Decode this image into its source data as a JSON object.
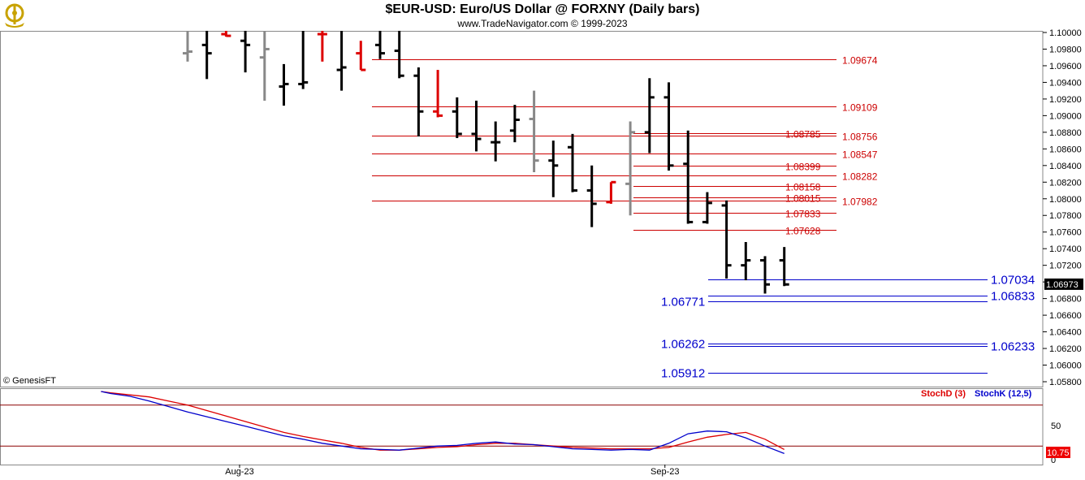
{
  "header": {
    "title": "$EUR-USD:  Euro/US Dollar @ FORXNY  (Daily bars)",
    "subtitle": "www.TradeNavigator.com © 1999-2023",
    "copyright": "© GenesisFT"
  },
  "colors": {
    "bull": "#000000",
    "flat": "#888888",
    "red_bar": "#dd0000",
    "red_level": "#cc0000",
    "blue_level": "#0000cc",
    "stochD": "#dd0000",
    "stochK": "#0000cc"
  },
  "chart_data": [
    {
      "type": "ohlc",
      "price_axis": {
        "min": 1.058,
        "max": 1.1,
        "step": 0.002,
        "ticks": [
          "1.10000",
          "1.09800",
          "1.09600",
          "1.09400",
          "1.09200",
          "1.09000",
          "1.08800",
          "1.08600",
          "1.08400",
          "1.08200",
          "1.08000",
          "1.07800",
          "1.07600",
          "1.07400",
          "1.07200",
          "1.07000",
          "1.06800",
          "1.06600",
          "1.06400",
          "1.06200",
          "1.06000",
          "1.05800"
        ]
      },
      "last_price": "1.06973",
      "bars": [
        {
          "h": 1.1002,
          "l": 1.0965,
          "o": 1.0975,
          "c": 1.0977,
          "color": "flat"
        },
        {
          "h": 1.1002,
          "l": 1.0944,
          "o": 1.0985,
          "c": 1.0975,
          "color": "bull"
        },
        {
          "h": 1.1002,
          "l": 1.0995,
          "o": 1.0998,
          "c": 1.0996,
          "color": "red"
        },
        {
          "h": 1.1002,
          "l": 1.0952,
          "o": 1.099,
          "c": 1.0985,
          "color": "bull"
        },
        {
          "h": 1.1002,
          "l": 1.0918,
          "o": 1.097,
          "c": 1.098,
          "color": "flat"
        },
        {
          "h": 1.0962,
          "l": 1.0912,
          "o": 1.0935,
          "c": 1.0938,
          "color": "bull"
        },
        {
          "h": 1.1002,
          "l": 1.0932,
          "o": 1.0938,
          "c": 1.094,
          "color": "bull"
        },
        {
          "h": 1.1002,
          "l": 1.0965,
          "o": 1.0998,
          "c": 1.0998,
          "color": "red"
        },
        {
          "h": 1.1002,
          "l": 1.093,
          "o": 1.0955,
          "c": 1.0958,
          "color": "bull"
        },
        {
          "h": 1.099,
          "l": 1.0955,
          "o": 1.0975,
          "c": 1.0955,
          "color": "red"
        },
        {
          "h": 1.1002,
          "l": 1.0968,
          "o": 1.0985,
          "c": 1.0975,
          "color": "bull"
        },
        {
          "h": 1.1002,
          "l": 1.0945,
          "o": 1.0978,
          "c": 1.0948,
          "color": "bull"
        },
        {
          "h": 1.0958,
          "l": 1.0875,
          "o": 1.0948,
          "c": 1.0905,
          "color": "bull"
        },
        {
          "h": 1.0955,
          "l": 1.0898,
          "o": 1.0905,
          "c": 1.09,
          "color": "red"
        },
        {
          "h": 1.0922,
          "l": 1.0873,
          "o": 1.0905,
          "c": 1.0878,
          "color": "bull"
        },
        {
          "h": 1.0918,
          "l": 1.0857,
          "o": 1.0878,
          "c": 1.0872,
          "color": "bull"
        },
        {
          "h": 1.0893,
          "l": 1.0845,
          "o": 1.0868,
          "c": 1.0868,
          "color": "bull"
        },
        {
          "h": 1.0913,
          "l": 1.0868,
          "o": 1.0882,
          "c": 1.0895,
          "color": "bull"
        },
        {
          "h": 1.093,
          "l": 1.0832,
          "o": 1.0896,
          "c": 1.0846,
          "color": "flat"
        },
        {
          "h": 1.087,
          "l": 1.0802,
          "o": 1.0846,
          "c": 1.084,
          "color": "bull"
        },
        {
          "h": 1.0878,
          "l": 1.0808,
          "o": 1.0862,
          "c": 1.081,
          "color": "bull"
        },
        {
          "h": 1.084,
          "l": 1.0766,
          "o": 1.081,
          "c": 1.0794,
          "color": "bull"
        },
        {
          "h": 1.082,
          "l": 1.0794,
          "o": 1.0796,
          "c": 1.082,
          "color": "red"
        },
        {
          "h": 1.0893,
          "l": 1.078,
          "o": 1.0818,
          "c": 1.088,
          "color": "flat"
        },
        {
          "h": 1.0945,
          "l": 1.0855,
          "o": 1.088,
          "c": 1.0922,
          "color": "bull"
        },
        {
          "h": 1.094,
          "l": 1.0834,
          "o": 1.0922,
          "c": 1.084,
          "color": "bull"
        },
        {
          "h": 1.0882,
          "l": 1.077,
          "o": 1.0842,
          "c": 1.0772,
          "color": "bull"
        },
        {
          "h": 1.0808,
          "l": 1.077,
          "o": 1.0772,
          "c": 1.0795,
          "color": "bull"
        },
        {
          "h": 1.0798,
          "l": 1.0704,
          "o": 1.0792,
          "c": 1.072,
          "color": "bull"
        },
        {
          "h": 1.0748,
          "l": 1.0702,
          "o": 1.072,
          "c": 1.0726,
          "color": "bull"
        },
        {
          "h": 1.0731,
          "l": 1.0686,
          "o": 1.0726,
          "c": 1.0697,
          "color": "bull"
        },
        {
          "h": 1.0742,
          "l": 1.0695,
          "o": 1.0726,
          "c": 1.0697,
          "color": "bull"
        }
      ],
      "levels": [
        {
          "value": 1.09674,
          "label": "1.09674",
          "color": "red",
          "side": "right"
        },
        {
          "value": 1.09109,
          "label": "1.09109",
          "color": "red",
          "side": "right"
        },
        {
          "value": 1.08785,
          "label": "1.08785",
          "color": "red",
          "side": "mid"
        },
        {
          "value": 1.08756,
          "label": "1.08756",
          "color": "red",
          "side": "right"
        },
        {
          "value": 1.08547,
          "label": "1.08547",
          "color": "red",
          "side": "right"
        },
        {
          "value": 1.08399,
          "label": "1.08399",
          "color": "red",
          "side": "mid"
        },
        {
          "value": 1.08282,
          "label": "1.08282",
          "color": "red",
          "side": "right"
        },
        {
          "value": 1.08158,
          "label": "1.08158",
          "color": "red",
          "side": "mid"
        },
        {
          "value": 1.08015,
          "label": "1.08015",
          "color": "red",
          "side": "mid"
        },
        {
          "value": 1.07982,
          "label": "1.07982",
          "color": "red",
          "side": "right"
        },
        {
          "value": 1.07833,
          "label": "1.07833",
          "color": "red",
          "side": "mid"
        },
        {
          "value": 1.07628,
          "label": "1.07628",
          "color": "red",
          "side": "mid"
        },
        {
          "value": 1.07034,
          "label": "1.07034",
          "color": "blue",
          "side": "right"
        },
        {
          "value": 1.06833,
          "label": "1.06833",
          "color": "blue",
          "side": "right"
        },
        {
          "value": 1.06771,
          "label": "1.06771",
          "color": "blue",
          "side": "left"
        },
        {
          "value": 1.06262,
          "label": "1.06262",
          "color": "blue",
          "side": "left"
        },
        {
          "value": 1.06233,
          "label": "1.06233",
          "color": "blue",
          "side": "right"
        },
        {
          "value": 1.05912,
          "label": "1.05912",
          "color": "blue",
          "side": "left"
        }
      ],
      "x_ticks": [
        {
          "label": "Aug-23",
          "bar": 2.7
        },
        {
          "label": "Sep-23",
          "bar": 24.8
        }
      ]
    },
    {
      "type": "line",
      "indicator": "stochastic",
      "y_axis": {
        "min": 0,
        "max": 100,
        "ticks": [
          "50",
          "0"
        ],
        "upper": 80,
        "lower": 20
      },
      "last_value": "10.75",
      "series": [
        {
          "name": "StochD (3)",
          "color": "stochD",
          "x": [
            -4.5,
            -4,
            -3,
            -2,
            -1,
            0,
            1,
            2,
            3,
            4,
            5,
            6,
            7,
            8,
            9,
            10,
            11,
            12,
            13,
            14,
            15,
            16,
            17,
            18,
            19,
            20,
            21,
            22,
            23,
            24,
            25,
            26,
            27,
            28,
            29,
            30,
            31
          ],
          "y": [
            100,
            98,
            95,
            92,
            86,
            80,
            72,
            64,
            56,
            48,
            40,
            34,
            29,
            24,
            18,
            14,
            14,
            16,
            18,
            19,
            22,
            24,
            24,
            22,
            20,
            18,
            17,
            16,
            16,
            16,
            18,
            26,
            33,
            37,
            40,
            30,
            15
          ]
        },
        {
          "name": "StochK (12,5)",
          "color": "stochK",
          "x": [
            -4.5,
            -4,
            -3,
            -2,
            -1,
            0,
            1,
            2,
            3,
            4,
            5,
            6,
            7,
            8,
            9,
            10,
            11,
            12,
            13,
            14,
            15,
            16,
            17,
            18,
            19,
            20,
            21,
            22,
            23,
            24,
            25,
            26,
            27,
            28,
            29,
            30,
            31
          ],
          "y": [
            100,
            97,
            93,
            86,
            78,
            70,
            63,
            56,
            49,
            42,
            35,
            30,
            24,
            20,
            16,
            15,
            14,
            17,
            20,
            21,
            24,
            26,
            23,
            22,
            19,
            16,
            15,
            14,
            15,
            14,
            24,
            38,
            42,
            41,
            32,
            20,
            9
          ]
        }
      ]
    }
  ]
}
